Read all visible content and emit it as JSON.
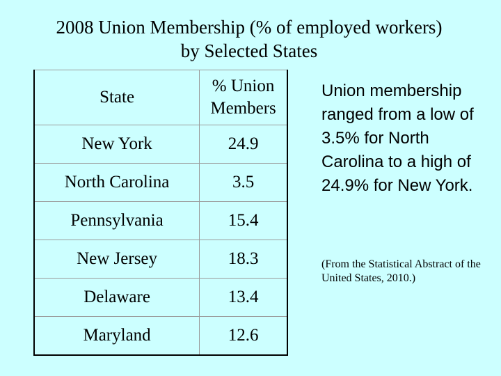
{
  "title": {
    "line1": "2008 Union Membership (% of employed workers)",
    "line2": "by Selected States"
  },
  "table": {
    "headers": {
      "state": "State",
      "value_line1": "% Union",
      "value_line2": "Members"
    },
    "rows": [
      {
        "state": "New York",
        "value": "24.9"
      },
      {
        "state": "North Carolina",
        "value": "3.5"
      },
      {
        "state": "Pennsylvania",
        "value": "15.4"
      },
      {
        "state": "New Jersey",
        "value": "18.3"
      },
      {
        "state": "Delaware",
        "value": "13.4"
      },
      {
        "state": "Maryland",
        "value": "12.6"
      }
    ]
  },
  "note": {
    "text": "Union membership ranged from a low of 3.5% for North Carolina to a high of 24.9% for New York."
  },
  "source": {
    "text": "(From the Statistical Abstract of the United States, 2010.)"
  },
  "colors": {
    "background": "#ccffff",
    "text": "#000000"
  }
}
